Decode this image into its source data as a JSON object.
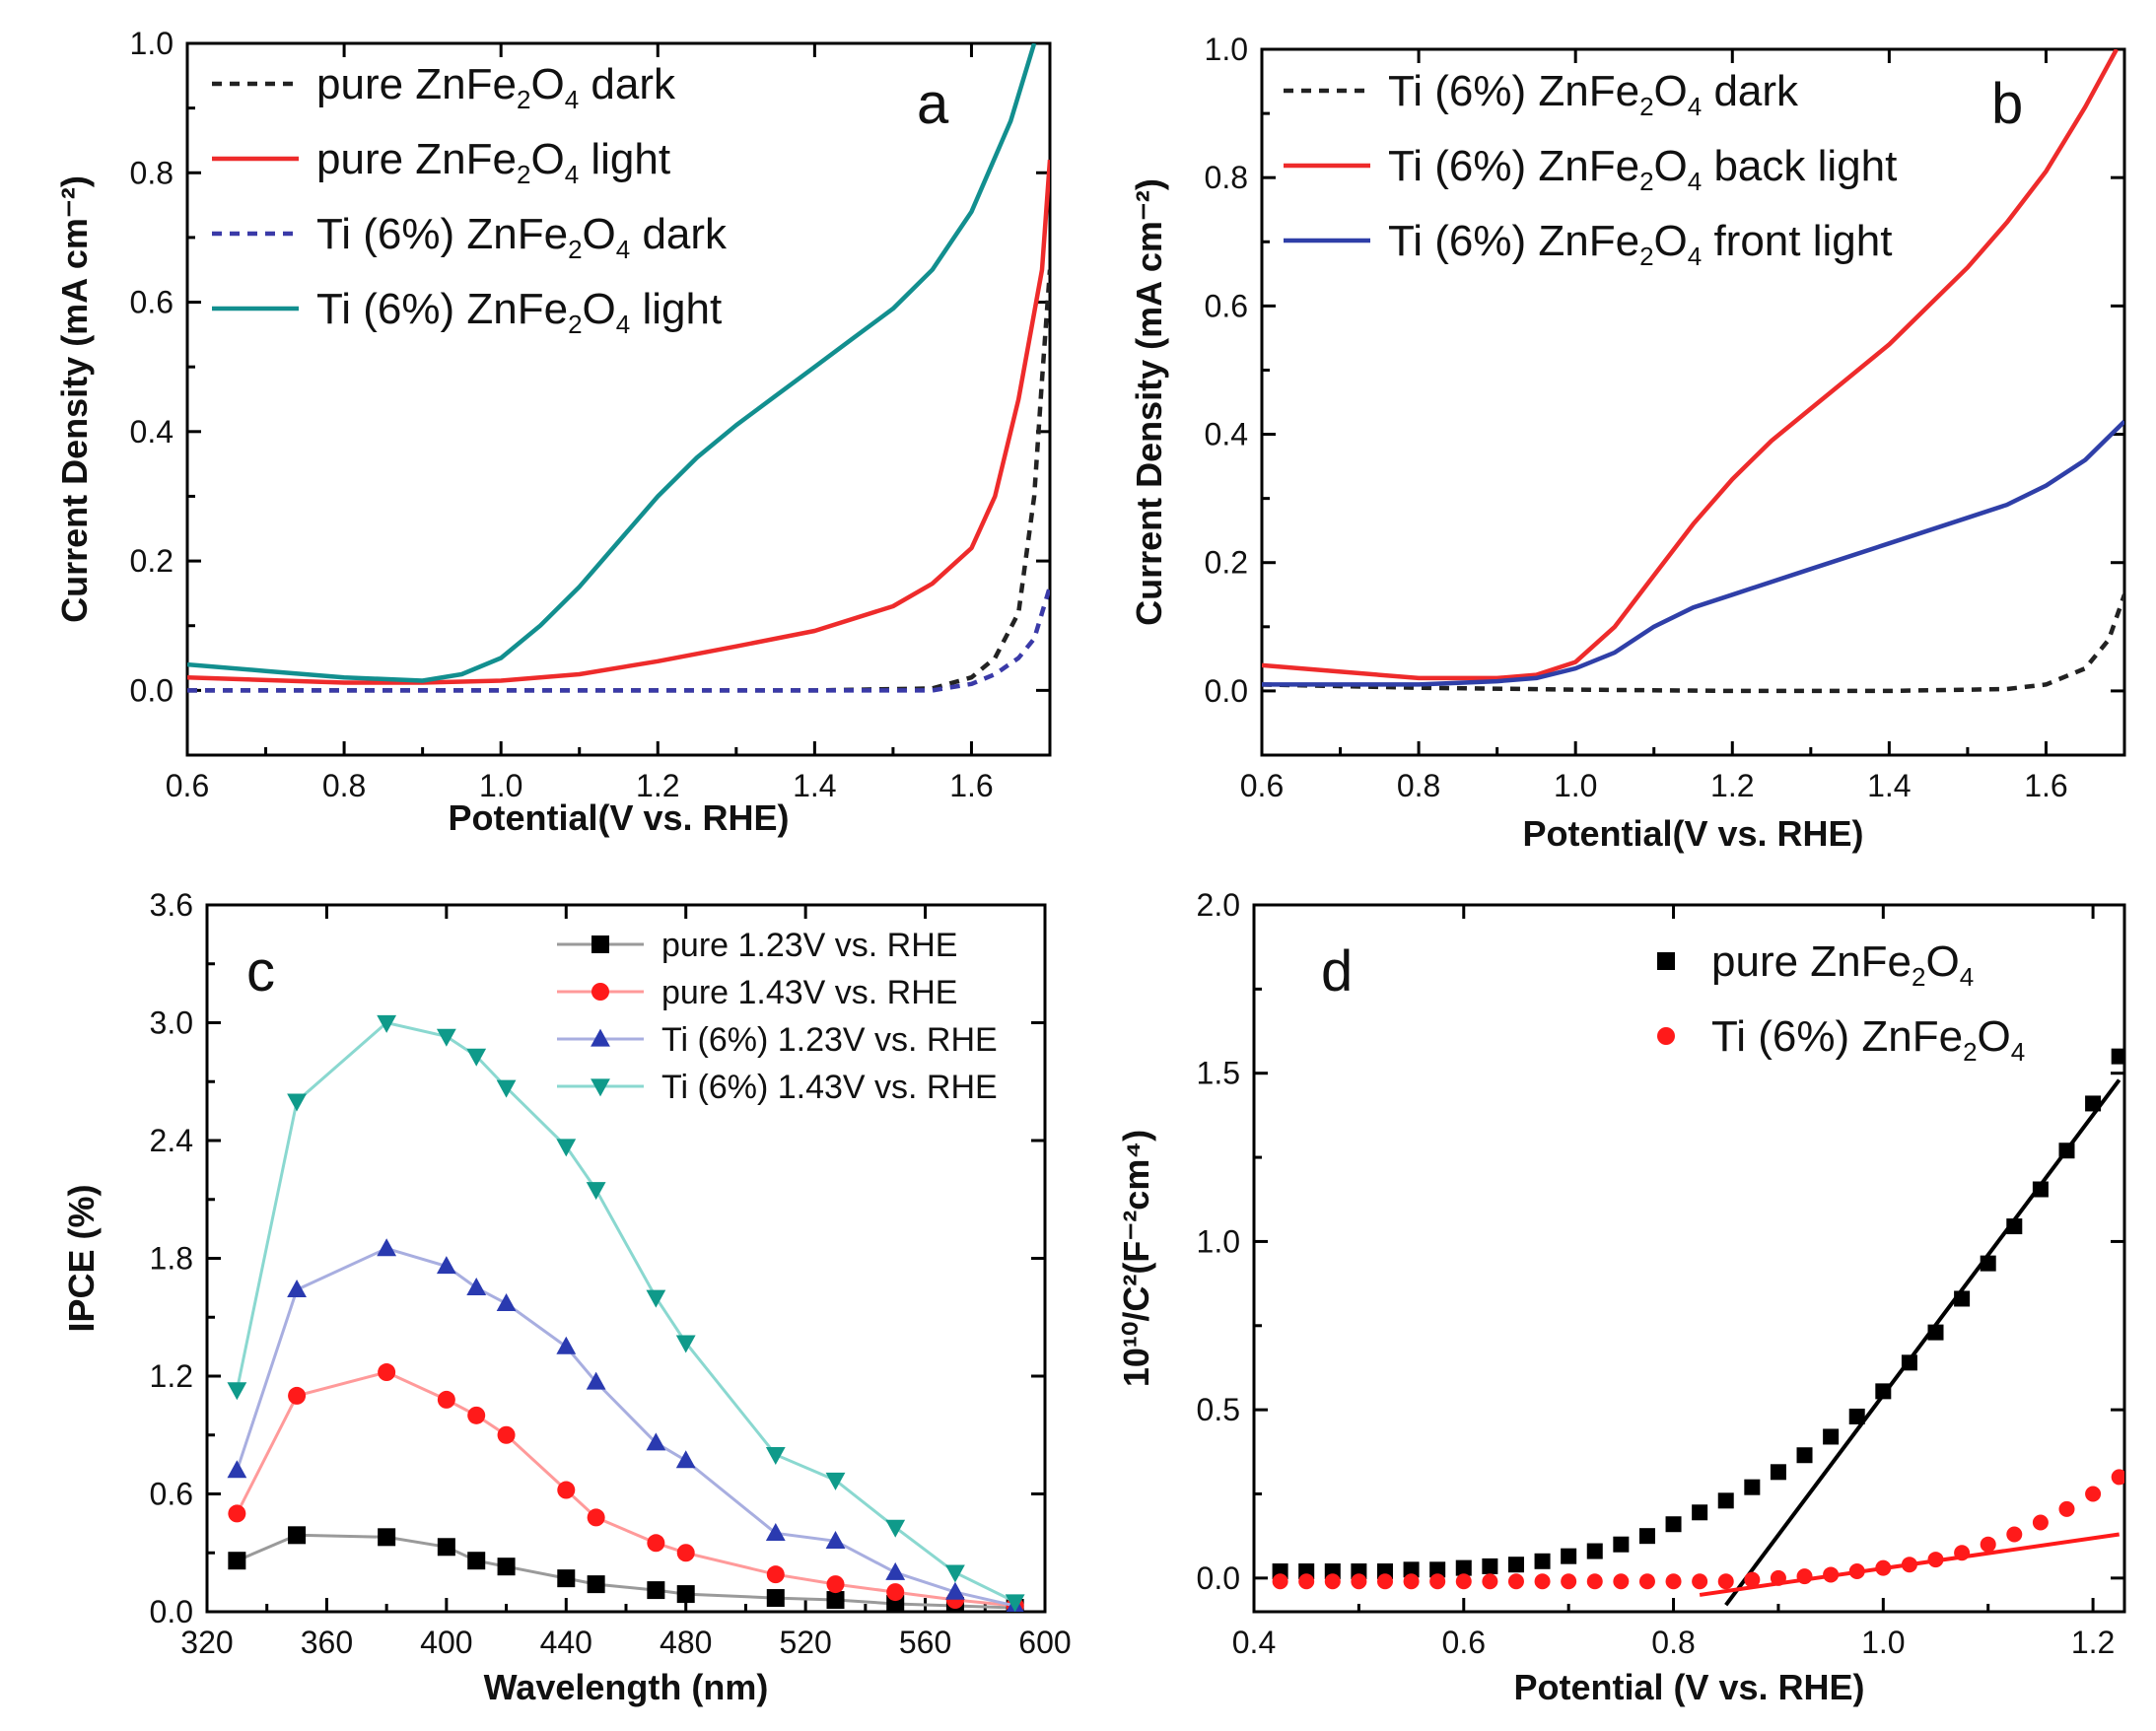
{
  "chart_data": [
    {
      "panel": "a",
      "type": "line",
      "xlabel": "Potential(V vs. RHE)",
      "ylabel": "Current Density (mA cm⁻²)",
      "xlim": [
        0.6,
        1.7
      ],
      "ylim": [
        -0.1,
        1.0
      ],
      "xticks": [
        "0.6",
        "0.8",
        "1.0",
        "1.2",
        "1.4",
        "1.6"
      ],
      "yticks": [
        "0.0",
        "0.2",
        "0.4",
        "0.6",
        "0.8",
        "1.0"
      ],
      "series": [
        {
          "name": "pure ZnFe2O4 dark",
          "legend": [
            "pure ZnFe",
            "2",
            "O",
            "4",
            " dark"
          ],
          "color": "#222222",
          "style": "dash",
          "points": [
            [
              0.6,
              0.0
            ],
            [
              1.0,
              0.0
            ],
            [
              1.4,
              0.0
            ],
            [
              1.55,
              0.003
            ],
            [
              1.6,
              0.02
            ],
            [
              1.63,
              0.05
            ],
            [
              1.66,
              0.12
            ],
            [
              1.68,
              0.3
            ],
            [
              1.69,
              0.48
            ],
            [
              1.7,
              0.65
            ]
          ]
        },
        {
          "name": "pure ZnFe2O4 light",
          "legend": [
            "pure ZnFe",
            "2",
            "O",
            "4",
            " light"
          ],
          "color": "#ee2b2b",
          "style": "solid",
          "points": [
            [
              0.6,
              0.02
            ],
            [
              0.8,
              0.012
            ],
            [
              0.9,
              0.012
            ],
            [
              1.0,
              0.015
            ],
            [
              1.1,
              0.025
            ],
            [
              1.2,
              0.045
            ],
            [
              1.3,
              0.068
            ],
            [
              1.4,
              0.092
            ],
            [
              1.5,
              0.13
            ],
            [
              1.55,
              0.165
            ],
            [
              1.6,
              0.22
            ],
            [
              1.63,
              0.3
            ],
            [
              1.66,
              0.45
            ],
            [
              1.69,
              0.65
            ],
            [
              1.7,
              0.82
            ]
          ]
        },
        {
          "name": "Ti (6%) ZnFe2O4 dark",
          "legend": [
            "Ti (6%) ZnFe",
            "2",
            "O",
            "4",
            " dark"
          ],
          "color": "#3a3aa8",
          "style": "dash",
          "points": [
            [
              0.6,
              0.0
            ],
            [
              1.0,
              0.0
            ],
            [
              1.4,
              0.0
            ],
            [
              1.55,
              0.0
            ],
            [
              1.6,
              0.01
            ],
            [
              1.63,
              0.025
            ],
            [
              1.66,
              0.05
            ],
            [
              1.68,
              0.08
            ],
            [
              1.7,
              0.16
            ]
          ]
        },
        {
          "name": "Ti (6%) ZnFe2O4 light",
          "legend": [
            "Ti (6%) ZnFe",
            "2",
            "O",
            "4",
            " light"
          ],
          "color": "#128f8f",
          "style": "solid",
          "points": [
            [
              0.6,
              0.04
            ],
            [
              0.7,
              0.03
            ],
            [
              0.8,
              0.02
            ],
            [
              0.9,
              0.015
            ],
            [
              0.95,
              0.025
            ],
            [
              1.0,
              0.05
            ],
            [
              1.05,
              0.1
            ],
            [
              1.1,
              0.16
            ],
            [
              1.15,
              0.23
            ],
            [
              1.2,
              0.3
            ],
            [
              1.25,
              0.36
            ],
            [
              1.3,
              0.41
            ],
            [
              1.35,
              0.455
            ],
            [
              1.4,
              0.5
            ],
            [
              1.45,
              0.545
            ],
            [
              1.5,
              0.59
            ],
            [
              1.55,
              0.65
            ],
            [
              1.6,
              0.74
            ],
            [
              1.65,
              0.88
            ],
            [
              1.68,
              1.0
            ]
          ]
        }
      ]
    },
    {
      "panel": "b",
      "type": "line",
      "xlabel": "Potential(V vs. RHE)",
      "ylabel": "Current Density (mA cm⁻²)",
      "xlim": [
        0.6,
        1.7
      ],
      "ylim": [
        -0.1,
        1.0
      ],
      "xticks": [
        "0.6",
        "0.8",
        "1.0",
        "1.2",
        "1.4",
        "1.6"
      ],
      "yticks": [
        "0.0",
        "0.2",
        "0.4",
        "0.6",
        "0.8",
        "1.0"
      ],
      "series": [
        {
          "name": "Ti (6%) ZnFe2O4 dark",
          "legend": [
            "Ti (6%) ZnFe",
            "2",
            "O",
            "4",
            " dark"
          ],
          "color": "#222222",
          "style": "dash",
          "points": [
            [
              0.6,
              0.01
            ],
            [
              0.8,
              0.005
            ],
            [
              1.0,
              0.002
            ],
            [
              1.2,
              0.0
            ],
            [
              1.4,
              0.0
            ],
            [
              1.55,
              0.003
            ],
            [
              1.6,
              0.01
            ],
            [
              1.65,
              0.035
            ],
            [
              1.68,
              0.08
            ],
            [
              1.7,
              0.15
            ]
          ]
        },
        {
          "name": "Ti (6%) ZnFe2O4 back light",
          "legend": [
            "Ti (6%) ZnFe",
            "2",
            "O",
            "4",
            " back light"
          ],
          "color": "#ee2b2b",
          "style": "solid",
          "points": [
            [
              0.6,
              0.04
            ],
            [
              0.7,
              0.03
            ],
            [
              0.8,
              0.02
            ],
            [
              0.9,
              0.02
            ],
            [
              0.95,
              0.025
            ],
            [
              1.0,
              0.045
            ],
            [
              1.05,
              0.1
            ],
            [
              1.1,
              0.18
            ],
            [
              1.15,
              0.26
            ],
            [
              1.2,
              0.33
            ],
            [
              1.25,
              0.39
            ],
            [
              1.3,
              0.44
            ],
            [
              1.35,
              0.49
            ],
            [
              1.4,
              0.54
            ],
            [
              1.45,
              0.6
            ],
            [
              1.5,
              0.66
            ],
            [
              1.55,
              0.73
            ],
            [
              1.6,
              0.81
            ],
            [
              1.65,
              0.91
            ],
            [
              1.69,
              1.0
            ]
          ]
        },
        {
          "name": "Ti (6%) ZnFe2O4 front light",
          "legend": [
            "Ti (6%) ZnFe",
            "2",
            "O",
            "4",
            " front light"
          ],
          "color": "#2f3fa8",
          "style": "solid",
          "points": [
            [
              0.6,
              0.01
            ],
            [
              0.8,
              0.01
            ],
            [
              0.9,
              0.015
            ],
            [
              0.95,
              0.02
            ],
            [
              1.0,
              0.035
            ],
            [
              1.05,
              0.06
            ],
            [
              1.1,
              0.1
            ],
            [
              1.15,
              0.13
            ],
            [
              1.2,
              0.15
            ],
            [
              1.3,
              0.19
            ],
            [
              1.4,
              0.23
            ],
            [
              1.5,
              0.27
            ],
            [
              1.55,
              0.29
            ],
            [
              1.6,
              0.32
            ],
            [
              1.65,
              0.36
            ],
            [
              1.7,
              0.42
            ]
          ]
        }
      ]
    },
    {
      "panel": "c",
      "type": "line",
      "xlabel": "Wavelength (nm)",
      "ylabel": "IPCE (%)",
      "xlim": [
        320,
        600
      ],
      "ylim": [
        0,
        3.6
      ],
      "xticks": [
        "320",
        "360",
        "400",
        "440",
        "480",
        "520",
        "560",
        "600"
      ],
      "yticks": [
        "0.0",
        "0.6",
        "1.2",
        "1.8",
        "2.4",
        "3.0",
        "3.6"
      ],
      "x": [
        330,
        350,
        380,
        400,
        410,
        420,
        440,
        450,
        470,
        480,
        510,
        530,
        550,
        570,
        590
      ],
      "series": [
        {
          "name": "pure 1.23V vs. RHE",
          "color": "#000000",
          "line": "#9a9a9a",
          "marker": "square",
          "values": [
            0.26,
            0.39,
            0.38,
            0.33,
            0.26,
            0.23,
            0.17,
            0.14,
            0.11,
            0.09,
            0.07,
            0.06,
            0.04,
            0.03,
            0.02
          ]
        },
        {
          "name": "pure 1.43V vs. RHE",
          "color": "#ff1a1a",
          "line": "#ff9a9a",
          "marker": "circle",
          "values": [
            0.5,
            1.1,
            1.22,
            1.08,
            1.0,
            0.9,
            0.62,
            0.48,
            0.35,
            0.3,
            0.19,
            0.14,
            0.1,
            0.06,
            0.03
          ]
        },
        {
          "name": "Ti (6%) 1.23V vs. RHE",
          "color": "#2a3ab0",
          "line": "#a8aee0",
          "marker": "triangle-up",
          "values": [
            0.72,
            1.64,
            1.85,
            1.76,
            1.65,
            1.57,
            1.35,
            1.17,
            0.86,
            0.77,
            0.4,
            0.36,
            0.2,
            0.1,
            0.03
          ]
        },
        {
          "name": "Ti (6%) 1.43V vs. RHE",
          "color": "#0f9a8a",
          "line": "#8ad8d0",
          "marker": "triangle-down",
          "values": [
            1.13,
            2.6,
            3.0,
            2.93,
            2.83,
            2.67,
            2.37,
            2.15,
            1.6,
            1.37,
            0.8,
            0.67,
            0.43,
            0.2,
            0.05
          ]
        }
      ]
    },
    {
      "panel": "d",
      "type": "scatter",
      "xlabel": "Potential (V vs. RHE)",
      "ylabel": "10¹⁰/C²(F⁻²cm⁴)",
      "xlim": [
        0.4,
        1.23
      ],
      "ylim": [
        -0.1,
        2.0
      ],
      "xticks": [
        "0.4",
        "0.6",
        "0.8",
        "1.0",
        "1.2"
      ],
      "yticks": [
        "0.0",
        "0.5",
        "1.0",
        "1.5",
        "2.0"
      ],
      "series": [
        {
          "name": "pure ZnFe2O4",
          "legend": [
            "pure ZnFe",
            "2",
            "O",
            "4",
            ""
          ],
          "color": "#000000",
          "marker": "square",
          "points": [
            [
              0.425,
              0.02
            ],
            [
              0.45,
              0.02
            ],
            [
              0.475,
              0.02
            ],
            [
              0.5,
              0.02
            ],
            [
              0.525,
              0.02
            ],
            [
              0.55,
              0.025
            ],
            [
              0.575,
              0.025
            ],
            [
              0.6,
              0.03
            ],
            [
              0.625,
              0.035
            ],
            [
              0.65,
              0.04
            ],
            [
              0.675,
              0.05
            ],
            [
              0.7,
              0.065
            ],
            [
              0.725,
              0.08
            ],
            [
              0.75,
              0.1
            ],
            [
              0.775,
              0.125
            ],
            [
              0.8,
              0.16
            ],
            [
              0.825,
              0.195
            ],
            [
              0.85,
              0.23
            ],
            [
              0.875,
              0.27
            ],
            [
              0.9,
              0.315
            ],
            [
              0.925,
              0.365
            ],
            [
              0.95,
              0.42
            ],
            [
              0.975,
              0.48
            ],
            [
              1.0,
              0.555
            ],
            [
              1.025,
              0.64
            ],
            [
              1.05,
              0.73
            ],
            [
              1.075,
              0.83
            ],
            [
              1.1,
              0.935
            ],
            [
              1.125,
              1.045
            ],
            [
              1.15,
              1.155
            ],
            [
              1.175,
              1.27
            ],
            [
              1.2,
              1.41
            ],
            [
              1.225,
              1.55
            ]
          ],
          "fit": [
            [
              0.85,
              -0.08
            ],
            [
              1.225,
              1.48
            ]
          ]
        },
        {
          "name": "Ti (6%) ZnFe2O4",
          "legend": [
            "Ti (6%) ZnFe",
            "2",
            "O",
            "4",
            ""
          ],
          "color": "#ff1a1a",
          "marker": "circle",
          "points": [
            [
              0.425,
              -0.01
            ],
            [
              0.45,
              -0.01
            ],
            [
              0.475,
              -0.01
            ],
            [
              0.5,
              -0.01
            ],
            [
              0.525,
              -0.01
            ],
            [
              0.55,
              -0.01
            ],
            [
              0.575,
              -0.01
            ],
            [
              0.6,
              -0.01
            ],
            [
              0.625,
              -0.01
            ],
            [
              0.65,
              -0.01
            ],
            [
              0.675,
              -0.01
            ],
            [
              0.7,
              -0.01
            ],
            [
              0.725,
              -0.01
            ],
            [
              0.75,
              -0.01
            ],
            [
              0.775,
              -0.01
            ],
            [
              0.8,
              -0.01
            ],
            [
              0.825,
              -0.01
            ],
            [
              0.85,
              -0.01
            ],
            [
              0.875,
              -0.005
            ],
            [
              0.9,
              0.0
            ],
            [
              0.925,
              0.005
            ],
            [
              0.95,
              0.01
            ],
            [
              0.975,
              0.02
            ],
            [
              1.0,
              0.03
            ],
            [
              1.025,
              0.04
            ],
            [
              1.05,
              0.055
            ],
            [
              1.075,
              0.075
            ],
            [
              1.1,
              0.1
            ],
            [
              1.125,
              0.13
            ],
            [
              1.15,
              0.165
            ],
            [
              1.175,
              0.205
            ],
            [
              1.2,
              0.25
            ],
            [
              1.225,
              0.3
            ]
          ],
          "fit": [
            [
              0.825,
              -0.05
            ],
            [
              1.225,
              0.13
            ]
          ]
        }
      ]
    }
  ]
}
